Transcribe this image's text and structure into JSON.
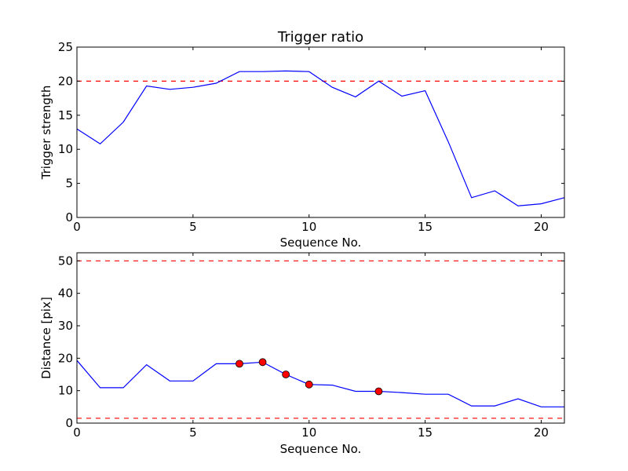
{
  "chart_data": [
    {
      "type": "line",
      "title": "Trigger ratio",
      "xlabel": "Sequence No.",
      "ylabel": "Trigger strength",
      "xlim": [
        0,
        21
      ],
      "ylim": [
        0,
        25
      ],
      "x_ticks": [
        0,
        5,
        10,
        15,
        20
      ],
      "y_ticks": [
        0,
        5,
        10,
        15,
        20,
        25
      ],
      "grid": false,
      "series": [
        {
          "x": [
            0,
            1,
            2,
            3,
            4,
            5,
            6,
            7,
            8,
            9,
            10,
            11,
            12,
            13,
            14,
            15,
            16,
            17,
            18,
            19,
            20,
            21
          ],
          "y": [
            13.0,
            10.8,
            14.0,
            19.3,
            18.8,
            19.1,
            19.7,
            21.4,
            21.4,
            21.5,
            21.4,
            19.1,
            17.7,
            20.0,
            17.8,
            18.6,
            11.1,
            2.9,
            3.9,
            1.7,
            2.0,
            2.9
          ],
          "color": "#0000ff"
        }
      ],
      "reference_lines": [
        {
          "y": 20,
          "color": "#ff0000",
          "style": "dashed"
        }
      ]
    },
    {
      "type": "line",
      "title": "",
      "xlabel": "Sequence No.",
      "ylabel": "Distance [pix]",
      "xlim": [
        0,
        21
      ],
      "ylim": [
        0,
        52.5
      ],
      "x_ticks": [
        0,
        5,
        10,
        15,
        20
      ],
      "y_ticks": [
        0,
        10,
        20,
        30,
        40,
        50
      ],
      "grid": false,
      "series": [
        {
          "x": [
            0,
            1,
            2,
            3,
            4,
            5,
            6,
            7,
            8,
            9,
            10,
            11,
            12,
            13,
            14,
            15,
            16,
            17,
            18,
            19,
            20,
            21
          ],
          "y": [
            19.3,
            10.9,
            10.9,
            18.0,
            13.0,
            13.0,
            18.3,
            18.3,
            18.8,
            15.0,
            11.9,
            11.7,
            9.8,
            9.8,
            9.4,
            8.9,
            8.9,
            5.3,
            5.3,
            7.5,
            5.0,
            5.0
          ],
          "color": "#0000ff"
        }
      ],
      "markers": {
        "x": [
          7,
          8,
          9,
          10,
          13
        ],
        "y": [
          18.3,
          18.8,
          15.0,
          11.9,
          9.8
        ],
        "color": "#ff0000",
        "shape": "circle"
      },
      "reference_lines": [
        {
          "y": 50,
          "color": "#ff0000",
          "style": "dashed"
        },
        {
          "y": 1.5,
          "color": "#ff0000",
          "style": "dashed"
        }
      ]
    }
  ]
}
